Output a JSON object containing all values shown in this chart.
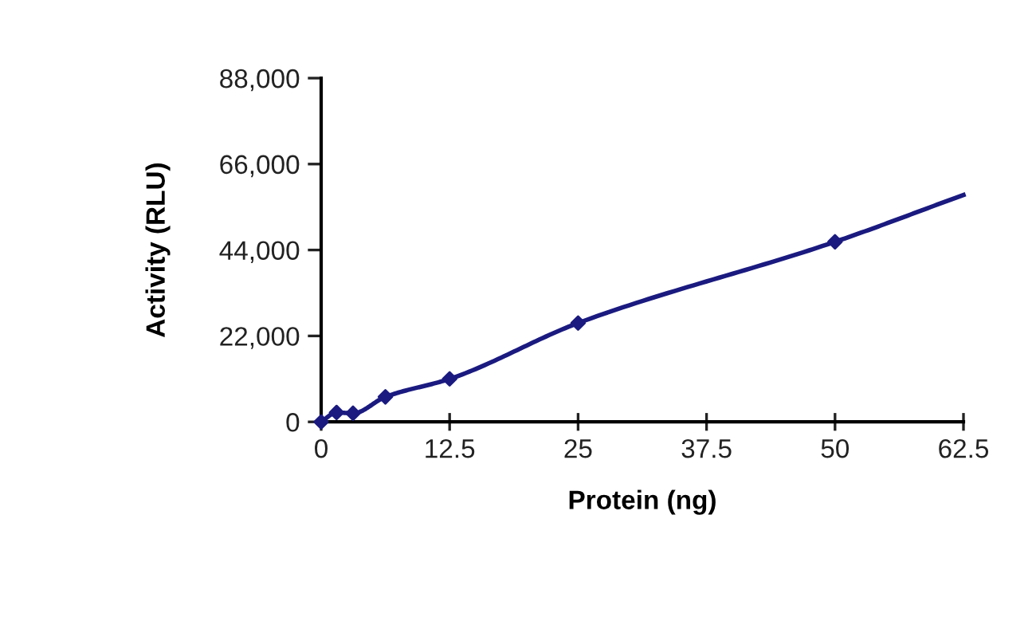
{
  "chart_data": {
    "type": "line",
    "xlabel": "Protein (ng)",
    "ylabel": "Activity (RLU)",
    "xlim": [
      0,
      62.5
    ],
    "xticks": [
      0,
      12.5,
      25,
      37.5,
      50,
      62.5
    ],
    "ylim": [
      0,
      88000
    ],
    "yticks": [
      {
        "value": 0,
        "label": "0"
      },
      {
        "value": 22000,
        "label": "22,000"
      },
      {
        "value": 44000,
        "label": "44,000"
      },
      {
        "value": 66000,
        "label": "66,000"
      },
      {
        "value": 88000,
        "label": "88,000"
      }
    ],
    "grid": false,
    "legend": false,
    "series": [
      {
        "color": "#1a1a80",
        "marker": "none",
        "x": [
          0,
          1.5,
          3.1,
          6.25,
          12.5,
          25,
          50,
          62.5
        ],
        "values": [
          0,
          2400,
          2200,
          6400,
          11000,
          25300,
          46100,
          58100
        ]
      },
      {
        "type": "scatter",
        "color": "#1a1a80",
        "marker": "diamond",
        "x": [
          0,
          1.5,
          3.1,
          6.25,
          12.5,
          25,
          50
        ],
        "values": [
          0,
          2400,
          2200,
          6400,
          11000,
          25300,
          46100
        ]
      }
    ]
  }
}
